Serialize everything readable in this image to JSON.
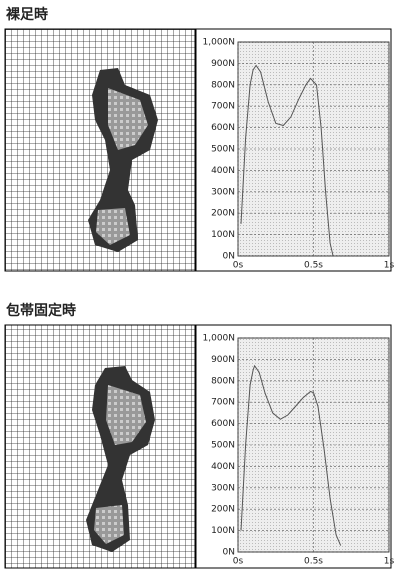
{
  "chart_data": [
    {
      "type": "line",
      "title": "裸足時",
      "x": [
        0.02,
        0.05,
        0.08,
        0.1,
        0.12,
        0.15,
        0.2,
        0.25,
        0.3,
        0.35,
        0.4,
        0.45,
        0.48,
        0.52,
        0.55,
        0.58,
        0.61,
        0.63
      ],
      "values": [
        150,
        550,
        800,
        870,
        890,
        860,
        720,
        620,
        610,
        650,
        730,
        800,
        830,
        800,
        600,
        300,
        60,
        0
      ],
      "color": "#555",
      "xlim": [
        0,
        1
      ],
      "ylim": [
        0,
        1000
      ],
      "xticks": [
        {
          "value": 0,
          "label": "0s"
        },
        {
          "value": 0.5,
          "label": "0.5s"
        },
        {
          "value": 1,
          "label": "1s"
        }
      ],
      "yticks": [
        {
          "value": 0,
          "label": "0N"
        },
        {
          "value": 100,
          "label": "100N"
        },
        {
          "value": 200,
          "label": "200N"
        },
        {
          "value": 300,
          "label": "300N"
        },
        {
          "value": 400,
          "label": "400N"
        },
        {
          "value": 500,
          "label": "500N"
        },
        {
          "value": 600,
          "label": "600N"
        },
        {
          "value": 700,
          "label": "700N"
        },
        {
          "value": 800,
          "label": "800N"
        },
        {
          "value": 900,
          "label": "900N"
        },
        {
          "value": 1000,
          "label": "1,000N"
        }
      ],
      "grid": true
    },
    {
      "type": "line",
      "title": "包帯固定時",
      "x": [
        0.02,
        0.05,
        0.08,
        0.1,
        0.11,
        0.14,
        0.18,
        0.23,
        0.28,
        0.33,
        0.38,
        0.43,
        0.48,
        0.5,
        0.53,
        0.57,
        0.61,
        0.65,
        0.68
      ],
      "values": [
        100,
        500,
        780,
        850,
        870,
        840,
        740,
        650,
        620,
        640,
        680,
        720,
        750,
        745,
        680,
        480,
        250,
        80,
        30
      ],
      "color": "#555",
      "xlim": [
        0,
        1
      ],
      "ylim": [
        0,
        1000
      ],
      "xticks": [
        {
          "value": 0,
          "label": "0s"
        },
        {
          "value": 0.5,
          "label": "0.5s"
        },
        {
          "value": 1,
          "label": "1s"
        }
      ],
      "yticks": [
        {
          "value": 0,
          "label": "0N"
        },
        {
          "value": 100,
          "label": "100N"
        },
        {
          "value": 200,
          "label": "200N"
        },
        {
          "value": 300,
          "label": "300N"
        },
        {
          "value": 400,
          "label": "400N"
        },
        {
          "value": 500,
          "label": "500N"
        },
        {
          "value": 600,
          "label": "600N"
        },
        {
          "value": 700,
          "label": "700N"
        },
        {
          "value": 800,
          "label": "800N"
        },
        {
          "value": 900,
          "label": "900N"
        },
        {
          "value": 1000,
          "label": "1,000N"
        }
      ],
      "grid": true
    }
  ]
}
